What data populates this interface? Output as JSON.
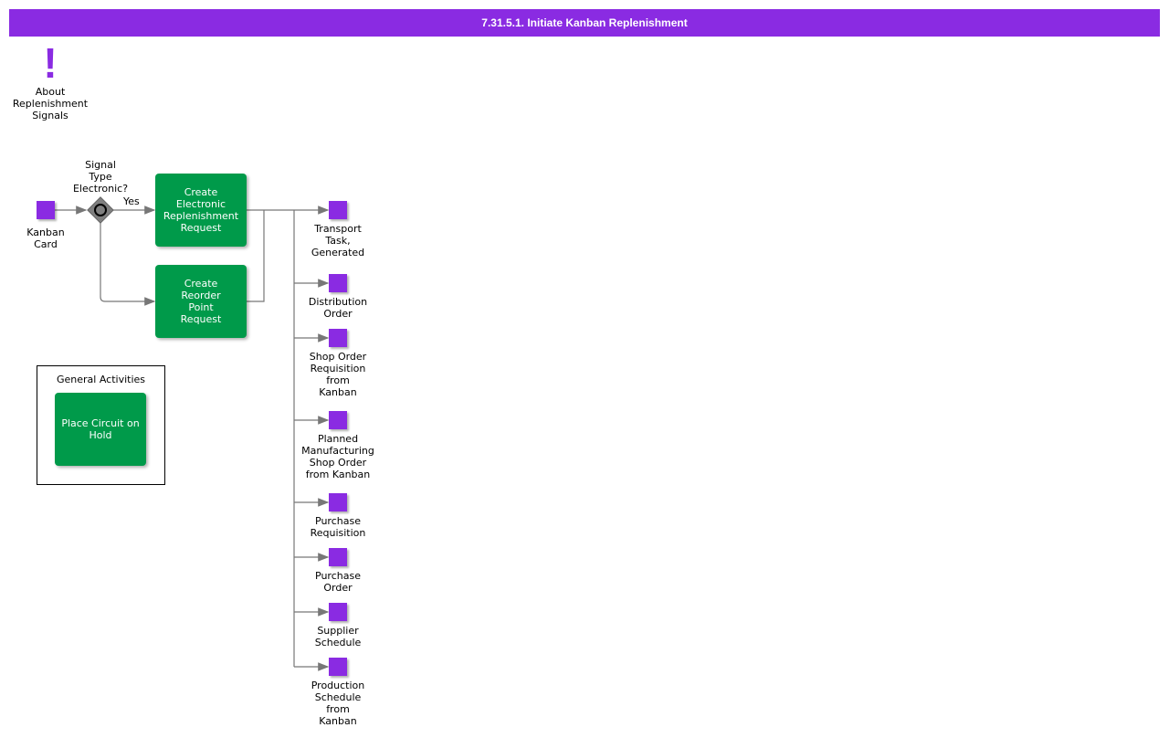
{
  "title": "7.31.5.1. Initiate Kanban Replenishment",
  "annotation": {
    "label": "About\nReplenishment\nSignals",
    "icon": "exclamation-icon"
  },
  "start_event": "Kanban\nCard",
  "gateway": {
    "label": "Signal\nType\nElectronic?",
    "yes_label": "Yes"
  },
  "tasks": [
    "Create\nElectronic\nReplenishment\nRequest",
    "Create\nReorder\nPoint\nRequest"
  ],
  "group": {
    "title": "General Activities",
    "task": "Place Circuit on\nHold"
  },
  "end_events": [
    "Transport\nTask,\nGenerated",
    "Distribution\nOrder",
    "Shop Order\nRequisition\nfrom\nKanban",
    "Planned\nManufacturing\nShop Order\nfrom Kanban",
    "Purchase\nRequisition",
    "Purchase\nOrder",
    "Supplier\nSchedule",
    "Production\nSchedule\nfrom\nKanban"
  ],
  "colors": {
    "event": "#8a2be2",
    "task": "#009a4a",
    "header": "#8a2be2"
  }
}
